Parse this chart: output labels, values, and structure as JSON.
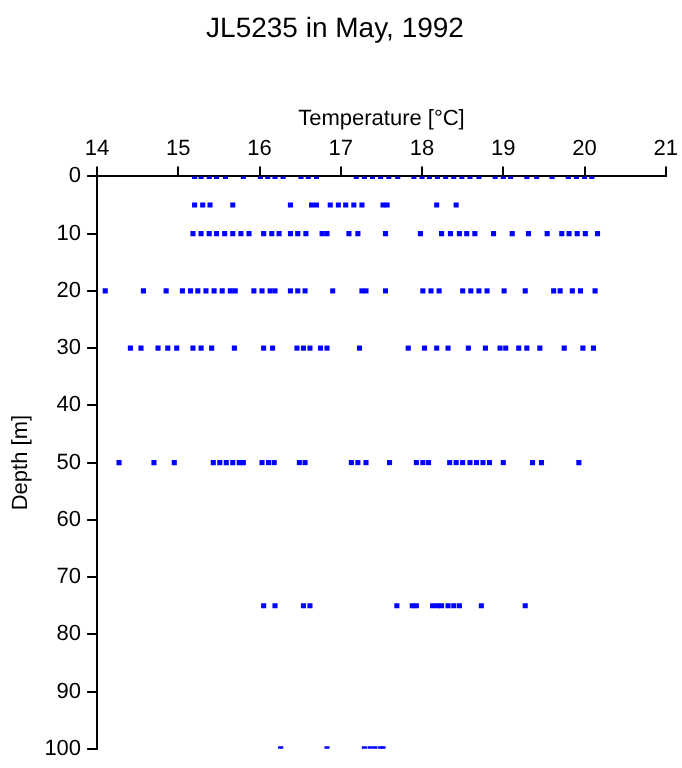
{
  "chart_data": {
    "type": "scatter",
    "title": "JL5235 in May, 1992",
    "xlabel": "Temperature [°C]",
    "ylabel": "Depth [m]",
    "x": [
      15.2,
      15.28,
      15.38,
      15.47,
      15.58,
      15.8,
      16.01,
      16.1,
      16.19,
      16.29,
      16.51,
      16.6,
      16.7,
      17.19,
      17.29,
      17.39,
      17.49,
      17.59,
      17.7,
      17.9,
      18.0,
      18.09,
      18.19,
      18.29,
      18.39,
      18.49,
      18.59,
      18.7,
      18.9,
      19.0,
      19.09,
      19.29,
      19.41,
      19.6,
      19.8,
      19.9,
      20.0,
      20.09,
      15.2,
      15.3,
      15.39,
      15.67,
      16.38,
      16.64,
      16.7,
      16.87,
      16.97,
      17.06,
      17.16,
      17.26,
      17.52,
      17.57,
      18.18,
      18.42,
      15.18,
      15.28,
      15.38,
      15.47,
      15.57,
      15.67,
      15.77,
      15.87,
      16.05,
      16.15,
      16.24,
      16.38,
      16.47,
      16.57,
      16.77,
      16.83,
      17.1,
      17.21,
      17.55,
      17.98,
      18.24,
      18.35,
      18.46,
      18.55,
      18.65,
      18.88,
      19.11,
      19.31,
      19.54,
      19.72,
      19.81,
      19.91,
      20.01,
      20.16,
      14.1,
      14.57,
      14.85,
      15.05,
      15.15,
      15.24,
      15.34,
      15.44,
      15.54,
      15.64,
      15.7,
      15.93,
      16.03,
      16.13,
      16.19,
      16.38,
      16.47,
      16.56,
      16.9,
      17.26,
      17.31,
      17.55,
      18.01,
      18.11,
      18.21,
      18.5,
      18.6,
      18.7,
      18.8,
      19.01,
      19.27,
      19.62,
      19.7,
      19.85,
      19.95,
      20.13,
      14.41,
      14.54,
      14.75,
      14.87,
      14.98,
      15.18,
      15.28,
      15.41,
      15.69,
      16.05,
      16.16,
      16.46,
      16.54,
      16.62,
      16.75,
      16.83,
      17.23,
      17.83,
      18.03,
      18.18,
      18.32,
      18.57,
      18.78,
      18.96,
      19.03,
      19.19,
      19.29,
      19.45,
      19.75,
      19.98,
      20.11,
      14.27,
      14.7,
      14.95,
      15.43,
      15.51,
      15.59,
      15.67,
      15.75,
      15.8,
      16.03,
      16.11,
      16.18,
      16.49,
      16.56,
      17.13,
      17.21,
      17.31,
      17.6,
      17.93,
      18.01,
      18.08,
      18.34,
      18.42,
      18.5,
      18.59,
      18.67,
      18.75,
      18.83,
      19.0,
      19.36,
      19.47,
      19.93,
      16.05,
      16.19,
      16.54,
      16.62,
      17.69,
      17.88,
      17.93,
      18.13,
      18.19,
      18.24,
      18.32,
      18.39,
      18.46,
      18.73,
      19.27,
      16.26,
      16.83,
      17.29,
      17.36,
      17.42,
      17.49,
      17.52
    ],
    "values": [
      0,
      0,
      0,
      0,
      0,
      0,
      0,
      0,
      0,
      0,
      0,
      0,
      0,
      0,
      0,
      0,
      0,
      0,
      0,
      0,
      0,
      0,
      0,
      0,
      0,
      0,
      0,
      0,
      0,
      0,
      0,
      0,
      0,
      0,
      0,
      0,
      0,
      0,
      5,
      5,
      5,
      5,
      5,
      5,
      5,
      5,
      5,
      5,
      5,
      5,
      5,
      5,
      5,
      5,
      10,
      10,
      10,
      10,
      10,
      10,
      10,
      10,
      10,
      10,
      10,
      10,
      10,
      10,
      10,
      10,
      10,
      10,
      10,
      10,
      10,
      10,
      10,
      10,
      10,
      10,
      10,
      10,
      10,
      10,
      10,
      10,
      10,
      10,
      20,
      20,
      20,
      20,
      20,
      20,
      20,
      20,
      20,
      20,
      20,
      20,
      20,
      20,
      20,
      20,
      20,
      20,
      20,
      20,
      20,
      20,
      20,
      20,
      20,
      20,
      20,
      20,
      20,
      20,
      20,
      20,
      20,
      20,
      20,
      20,
      30,
      30,
      30,
      30,
      30,
      30,
      30,
      30,
      30,
      30,
      30,
      30,
      30,
      30,
      30,
      30,
      30,
      30,
      30,
      30,
      30,
      30,
      30,
      30,
      30,
      30,
      30,
      30,
      30,
      30,
      30,
      50,
      50,
      50,
      50,
      50,
      50,
      50,
      50,
      50,
      50,
      50,
      50,
      50,
      50,
      50,
      50,
      50,
      50,
      50,
      50,
      50,
      50,
      50,
      50,
      50,
      50,
      50,
      50,
      50,
      50,
      50,
      50,
      75,
      75,
      75,
      75,
      75,
      75,
      75,
      75,
      75,
      75,
      75,
      75,
      75,
      75,
      75,
      100,
      100,
      100,
      100,
      100,
      100,
      100
    ],
    "color": "#0000ff",
    "marker": "square",
    "xlim": [
      14,
      21
    ],
    "xticks": [
      14,
      15,
      16,
      17,
      18,
      19,
      20,
      21
    ],
    "ylim": [
      100,
      0
    ],
    "yticks": [
      0,
      10,
      20,
      30,
      40,
      50,
      60,
      70,
      80,
      90,
      100
    ],
    "grid": false,
    "legend": false
  }
}
